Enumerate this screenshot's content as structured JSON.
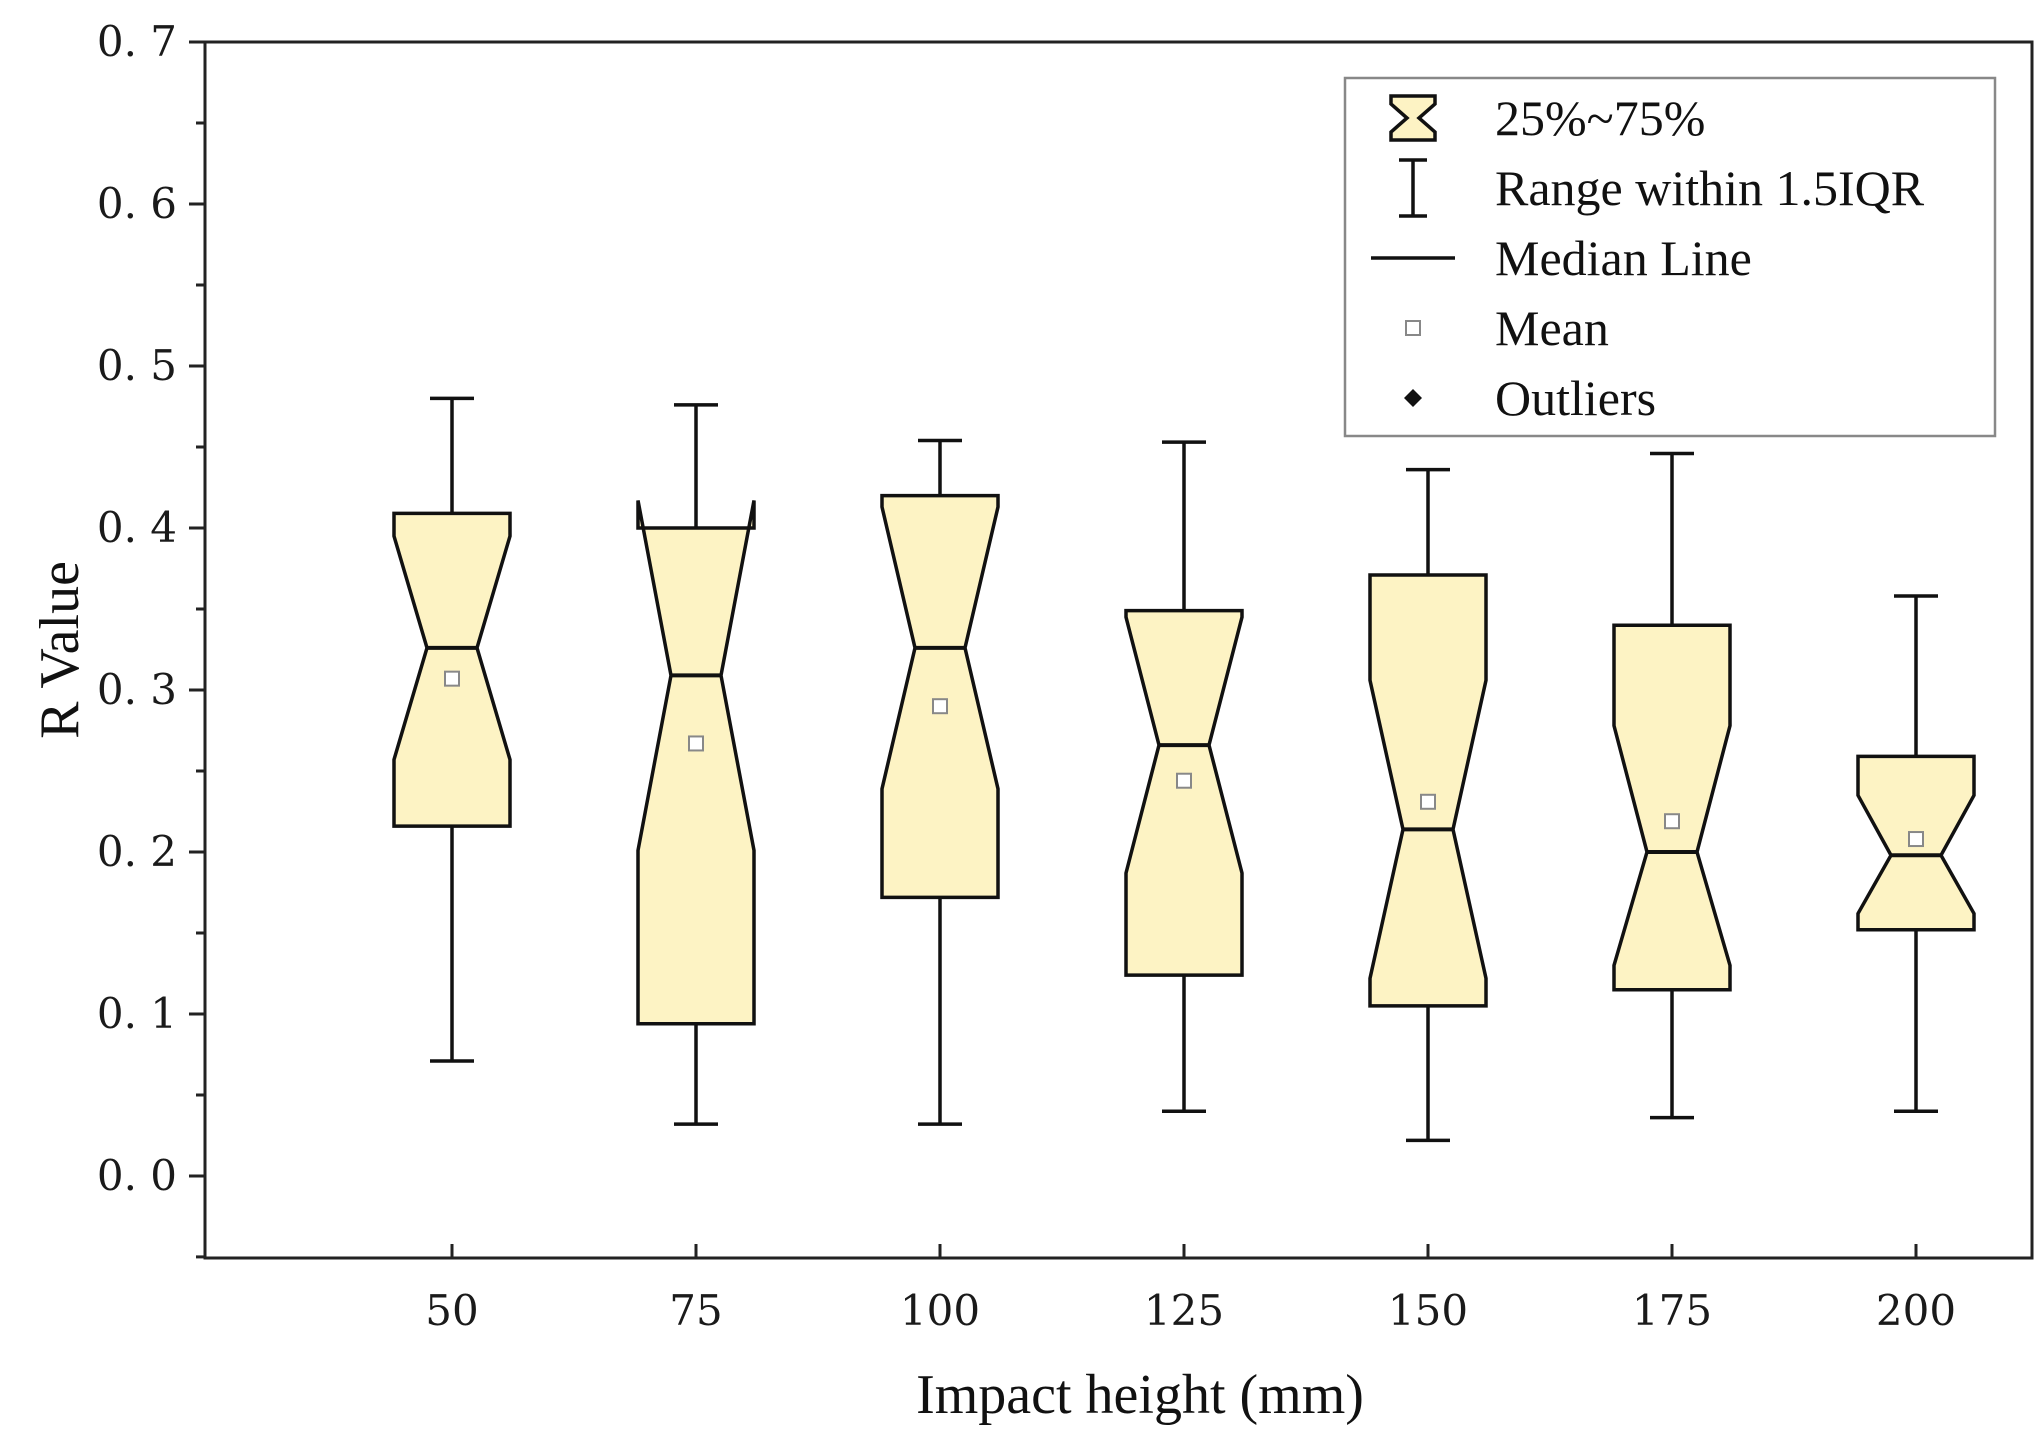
{
  "chart_data": {
    "type": "box",
    "xlabel": "Impact height (mm)",
    "ylabel": "R Value",
    "ylim": [
      -0.05,
      0.7
    ],
    "yticks": [
      "0. 0",
      "0. 1",
      "0. 2",
      "0. 3",
      "0. 4",
      "0. 5",
      "0. 6",
      "0. 7"
    ],
    "ytick_values": [
      0.0,
      0.1,
      0.2,
      0.3,
      0.4,
      0.5,
      0.6,
      0.7
    ],
    "categories": [
      "50",
      "75",
      "100",
      "125",
      "150",
      "175",
      "200"
    ],
    "boxes": [
      {
        "category": "50",
        "whisker_low": 0.071,
        "q1": 0.216,
        "median": 0.326,
        "q3": 0.409,
        "whisker_high": 0.48,
        "mean": 0.307,
        "notch_low": 0.257,
        "notch_high": 0.395
      },
      {
        "category": "75",
        "whisker_low": 0.032,
        "q1": 0.094,
        "median": 0.309,
        "q3": 0.4,
        "whisker_high": 0.476,
        "mean": 0.267,
        "notch_low": 0.201,
        "notch_high": 0.417
      },
      {
        "category": "100",
        "whisker_low": 0.032,
        "q1": 0.172,
        "median": 0.326,
        "q3": 0.42,
        "whisker_high": 0.454,
        "mean": 0.29,
        "notch_low": 0.239,
        "notch_high": 0.413
      },
      {
        "category": "125",
        "whisker_low": 0.04,
        "q1": 0.124,
        "median": 0.266,
        "q3": 0.349,
        "whisker_high": 0.453,
        "mean": 0.244,
        "notch_low": 0.187,
        "notch_high": 0.345
      },
      {
        "category": "150",
        "whisker_low": 0.022,
        "q1": 0.105,
        "median": 0.214,
        "q3": 0.371,
        "whisker_high": 0.436,
        "mean": 0.231,
        "notch_low": 0.122,
        "notch_high": 0.306
      },
      {
        "category": "175",
        "whisker_low": 0.036,
        "q1": 0.115,
        "median": 0.2,
        "q3": 0.34,
        "whisker_high": 0.446,
        "mean": 0.219,
        "notch_low": 0.13,
        "notch_high": 0.278
      },
      {
        "category": "200",
        "whisker_low": 0.04,
        "q1": 0.152,
        "median": 0.198,
        "q3": 0.259,
        "whisker_high": 0.358,
        "mean": 0.208,
        "notch_low": 0.162,
        "notch_high": 0.235
      }
    ],
    "legend": {
      "position": "top-right",
      "entries": [
        {
          "symbol": "box",
          "label": "25%~75%"
        },
        {
          "symbol": "whisker",
          "label": "Range within 1.5IQR"
        },
        {
          "symbol": "line",
          "label": "Median Line"
        },
        {
          "symbol": "mean",
          "label": "Mean"
        },
        {
          "symbol": "outlier",
          "label": "Outliers"
        }
      ]
    },
    "colors": {
      "box_fill": "#fdf3c4",
      "stroke": "#111111",
      "mean_marker": "#888888",
      "frame": "#222222"
    }
  }
}
